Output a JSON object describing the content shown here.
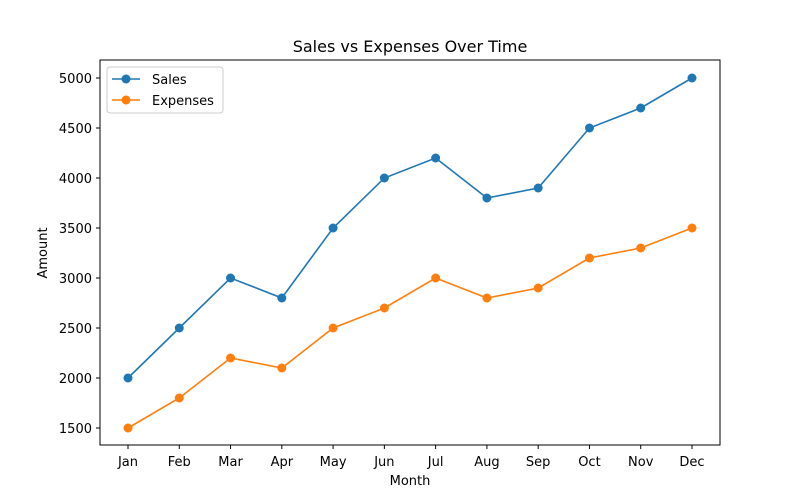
{
  "chart_data": {
    "type": "line",
    "title": "Sales vs Expenses Over Time",
    "xlabel": "Month",
    "ylabel": "Amount",
    "categories": [
      "Jan",
      "Feb",
      "Mar",
      "Apr",
      "May",
      "Jun",
      "Jul",
      "Aug",
      "Sep",
      "Oct",
      "Nov",
      "Dec"
    ],
    "series": [
      {
        "name": "Sales",
        "color": "#1f77b4",
        "marker": "circle",
        "values": [
          2000,
          2500,
          3000,
          2800,
          3500,
          4000,
          4200,
          3800,
          3900,
          4500,
          4700,
          5000
        ]
      },
      {
        "name": "Expenses",
        "color": "#ff7f0e",
        "marker": "circle",
        "values": [
          1500,
          1800,
          2200,
          2100,
          2500,
          2700,
          3000,
          2800,
          2900,
          3200,
          3300,
          3500
        ]
      }
    ],
    "yticks": [
      1500,
      2000,
      2500,
      3000,
      3500,
      4000,
      4500,
      5000
    ],
    "ylim": [
      1330,
      5180
    ],
    "grid": false,
    "legend": "upper-left"
  }
}
